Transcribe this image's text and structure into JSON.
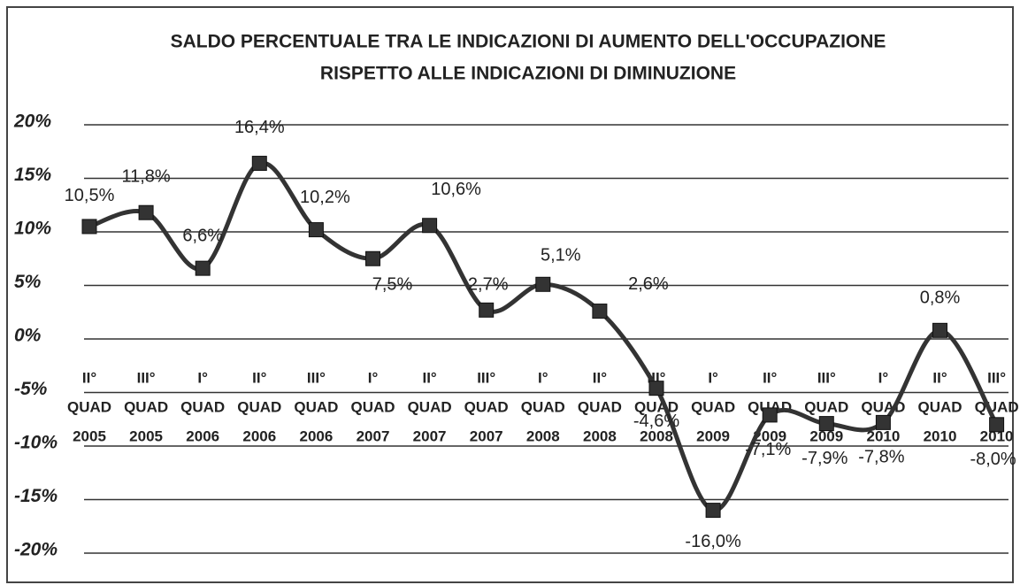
{
  "chart_data": {
    "type": "line",
    "title": [
      "SALDO PERCENTUALE TRA LE INDICAZIONI DI AUMENTO DELL'OCCUPAZIONE",
      "RISPETTO ALLE INDICAZIONI DI DIMINUZIONE"
    ],
    "categories": [
      [
        "II°",
        "QUAD",
        "2005"
      ],
      [
        "III°",
        "QUAD",
        "2005"
      ],
      [
        "I°",
        "QUAD",
        "2006"
      ],
      [
        "II°",
        "QUAD",
        "2006"
      ],
      [
        "III°",
        "QUAD",
        "2006"
      ],
      [
        "I°",
        "QUAD",
        "2007"
      ],
      [
        "II°",
        "QUAD",
        "2007"
      ],
      [
        "III°",
        "QUAD",
        "2007"
      ],
      [
        "I°",
        "QUAD",
        "2008"
      ],
      [
        "II°",
        "QUAD",
        "2008"
      ],
      [
        "III°",
        "QUAD",
        "2008"
      ],
      [
        "I°",
        "QUAD",
        "2009"
      ],
      [
        "II°",
        "QUAD",
        "2009"
      ],
      [
        "III°",
        "QUAD",
        "2009"
      ],
      [
        "I°",
        "QUAD",
        "2010"
      ],
      [
        "II°",
        "QUAD",
        "2010"
      ],
      [
        "III°",
        "QUAD",
        "2010"
      ]
    ],
    "values": [
      10.5,
      11.8,
      6.6,
      16.4,
      10.2,
      7.5,
      10.6,
      2.7,
      5.1,
      2.6,
      -4.6,
      -16.0,
      -7.1,
      -7.9,
      -7.8,
      0.8,
      -8.0
    ],
    "value_labels": [
      "10,5%",
      "11,8%",
      "6,6%",
      "16,4%",
      "10,2%",
      "7,5%",
      "10,6%",
      "2,7%",
      "5,1%",
      "2,6%",
      "-4,6%",
      "-16,0%",
      "-7,1%",
      "-7,9%",
      "-7,8%",
      "0,8%",
      "-8,0%"
    ],
    "color": "#333333",
    "ylim": [
      -20,
      20
    ],
    "yticks": [
      {
        "value": -20,
        "label": "-20%"
      },
      {
        "value": -15,
        "label": "-15%"
      },
      {
        "value": -10,
        "label": "-10%"
      },
      {
        "value": -5,
        "label": "-5%"
      },
      {
        "value": 0,
        "label": "0%"
      },
      {
        "value": 5,
        "label": "5%"
      },
      {
        "value": 10,
        "label": "10%"
      },
      {
        "value": 15,
        "label": "15%"
      },
      {
        "value": 20,
        "label": "20%"
      }
    ],
    "grid": true
  }
}
